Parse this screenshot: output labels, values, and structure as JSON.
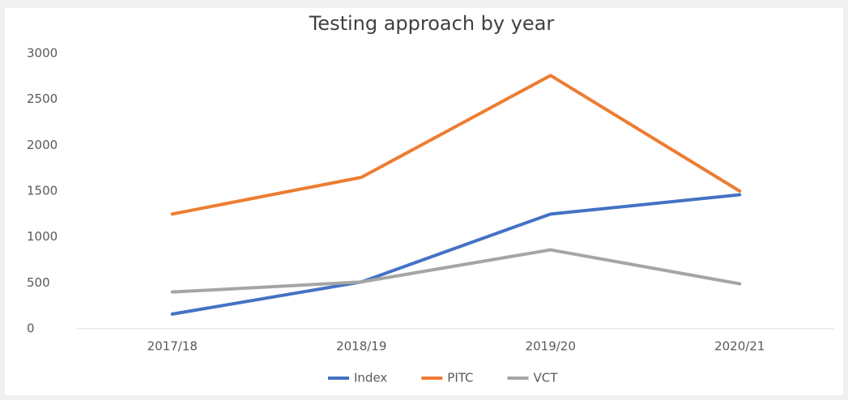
{
  "chart_data": {
    "type": "line",
    "title": "Testing approach by year",
    "categories": [
      "2017/18",
      "2018/19",
      "2019/20",
      "2020/21"
    ],
    "series": [
      {
        "name": "Index",
        "color": "#4472c4",
        "values": [
          160,
          510,
          1250,
          1460
        ]
      },
      {
        "name": "PITC",
        "color": "#ed7d31",
        "values": [
          1250,
          1650,
          2760,
          1500
        ]
      },
      {
        "name": "VCT",
        "color": "#a5a5a5",
        "values": [
          400,
          510,
          860,
          490
        ]
      }
    ],
    "ylim": [
      0,
      3000
    ],
    "yticks": [
      0,
      500,
      1000,
      1500,
      2000,
      2500,
      3000
    ],
    "grid": false,
    "legend": "bottom"
  }
}
